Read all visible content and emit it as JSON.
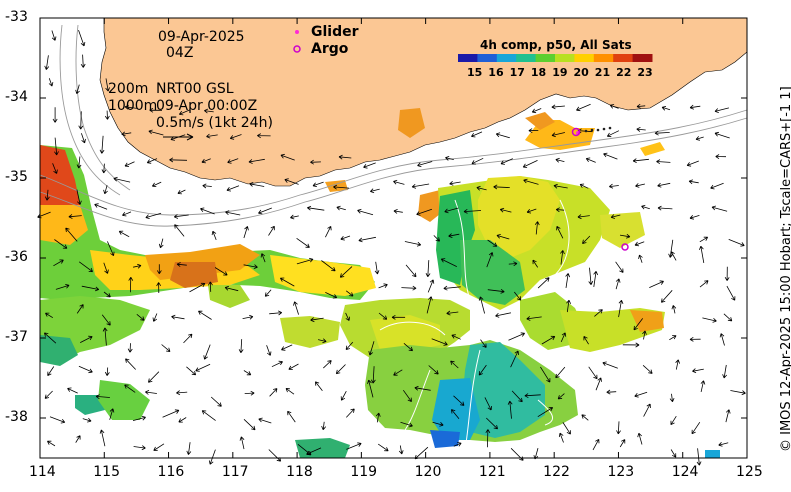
{
  "map": {
    "date": "09-Apr-2025",
    "hour": "04Z",
    "contour_info_1": "200m",
    "contour_info_1b": "NRT00 GSL",
    "contour_info_2": "1000m",
    "contour_info_2b": "09-Apr 00:00Z",
    "scale_text": "0.5m/s (1kt 24h)",
    "glider_label": "Glider",
    "argo_label": "Argo",
    "colorbar_title": "4h comp, p50, All Sats",
    "colorbar_ticks": [
      "15",
      "16",
      "17",
      "18",
      "19",
      "20",
      "21",
      "22",
      "23"
    ],
    "colorbar_colors": [
      "#1a1aa8",
      "#1f5fd6",
      "#18a6d8",
      "#20c090",
      "#5ccf30",
      "#b8e020",
      "#ffd000",
      "#ff9000",
      "#e04010",
      "#a01010"
    ],
    "credit": "© IMOS 12-Apr-2025 15:00 Hobart; Tscale=CARS+[-1 1]",
    "x_ticks": [
      "114",
      "115",
      "116",
      "117",
      "118",
      "119",
      "120",
      "121",
      "122",
      "123",
      "124",
      "125"
    ],
    "y_ticks": [
      "-33",
      "-34",
      "-35",
      "-36",
      "-37",
      "-38"
    ],
    "land_color": "#fbc794",
    "glider_color": "#ff2bd6",
    "argo_color": "#cc00cc"
  }
}
